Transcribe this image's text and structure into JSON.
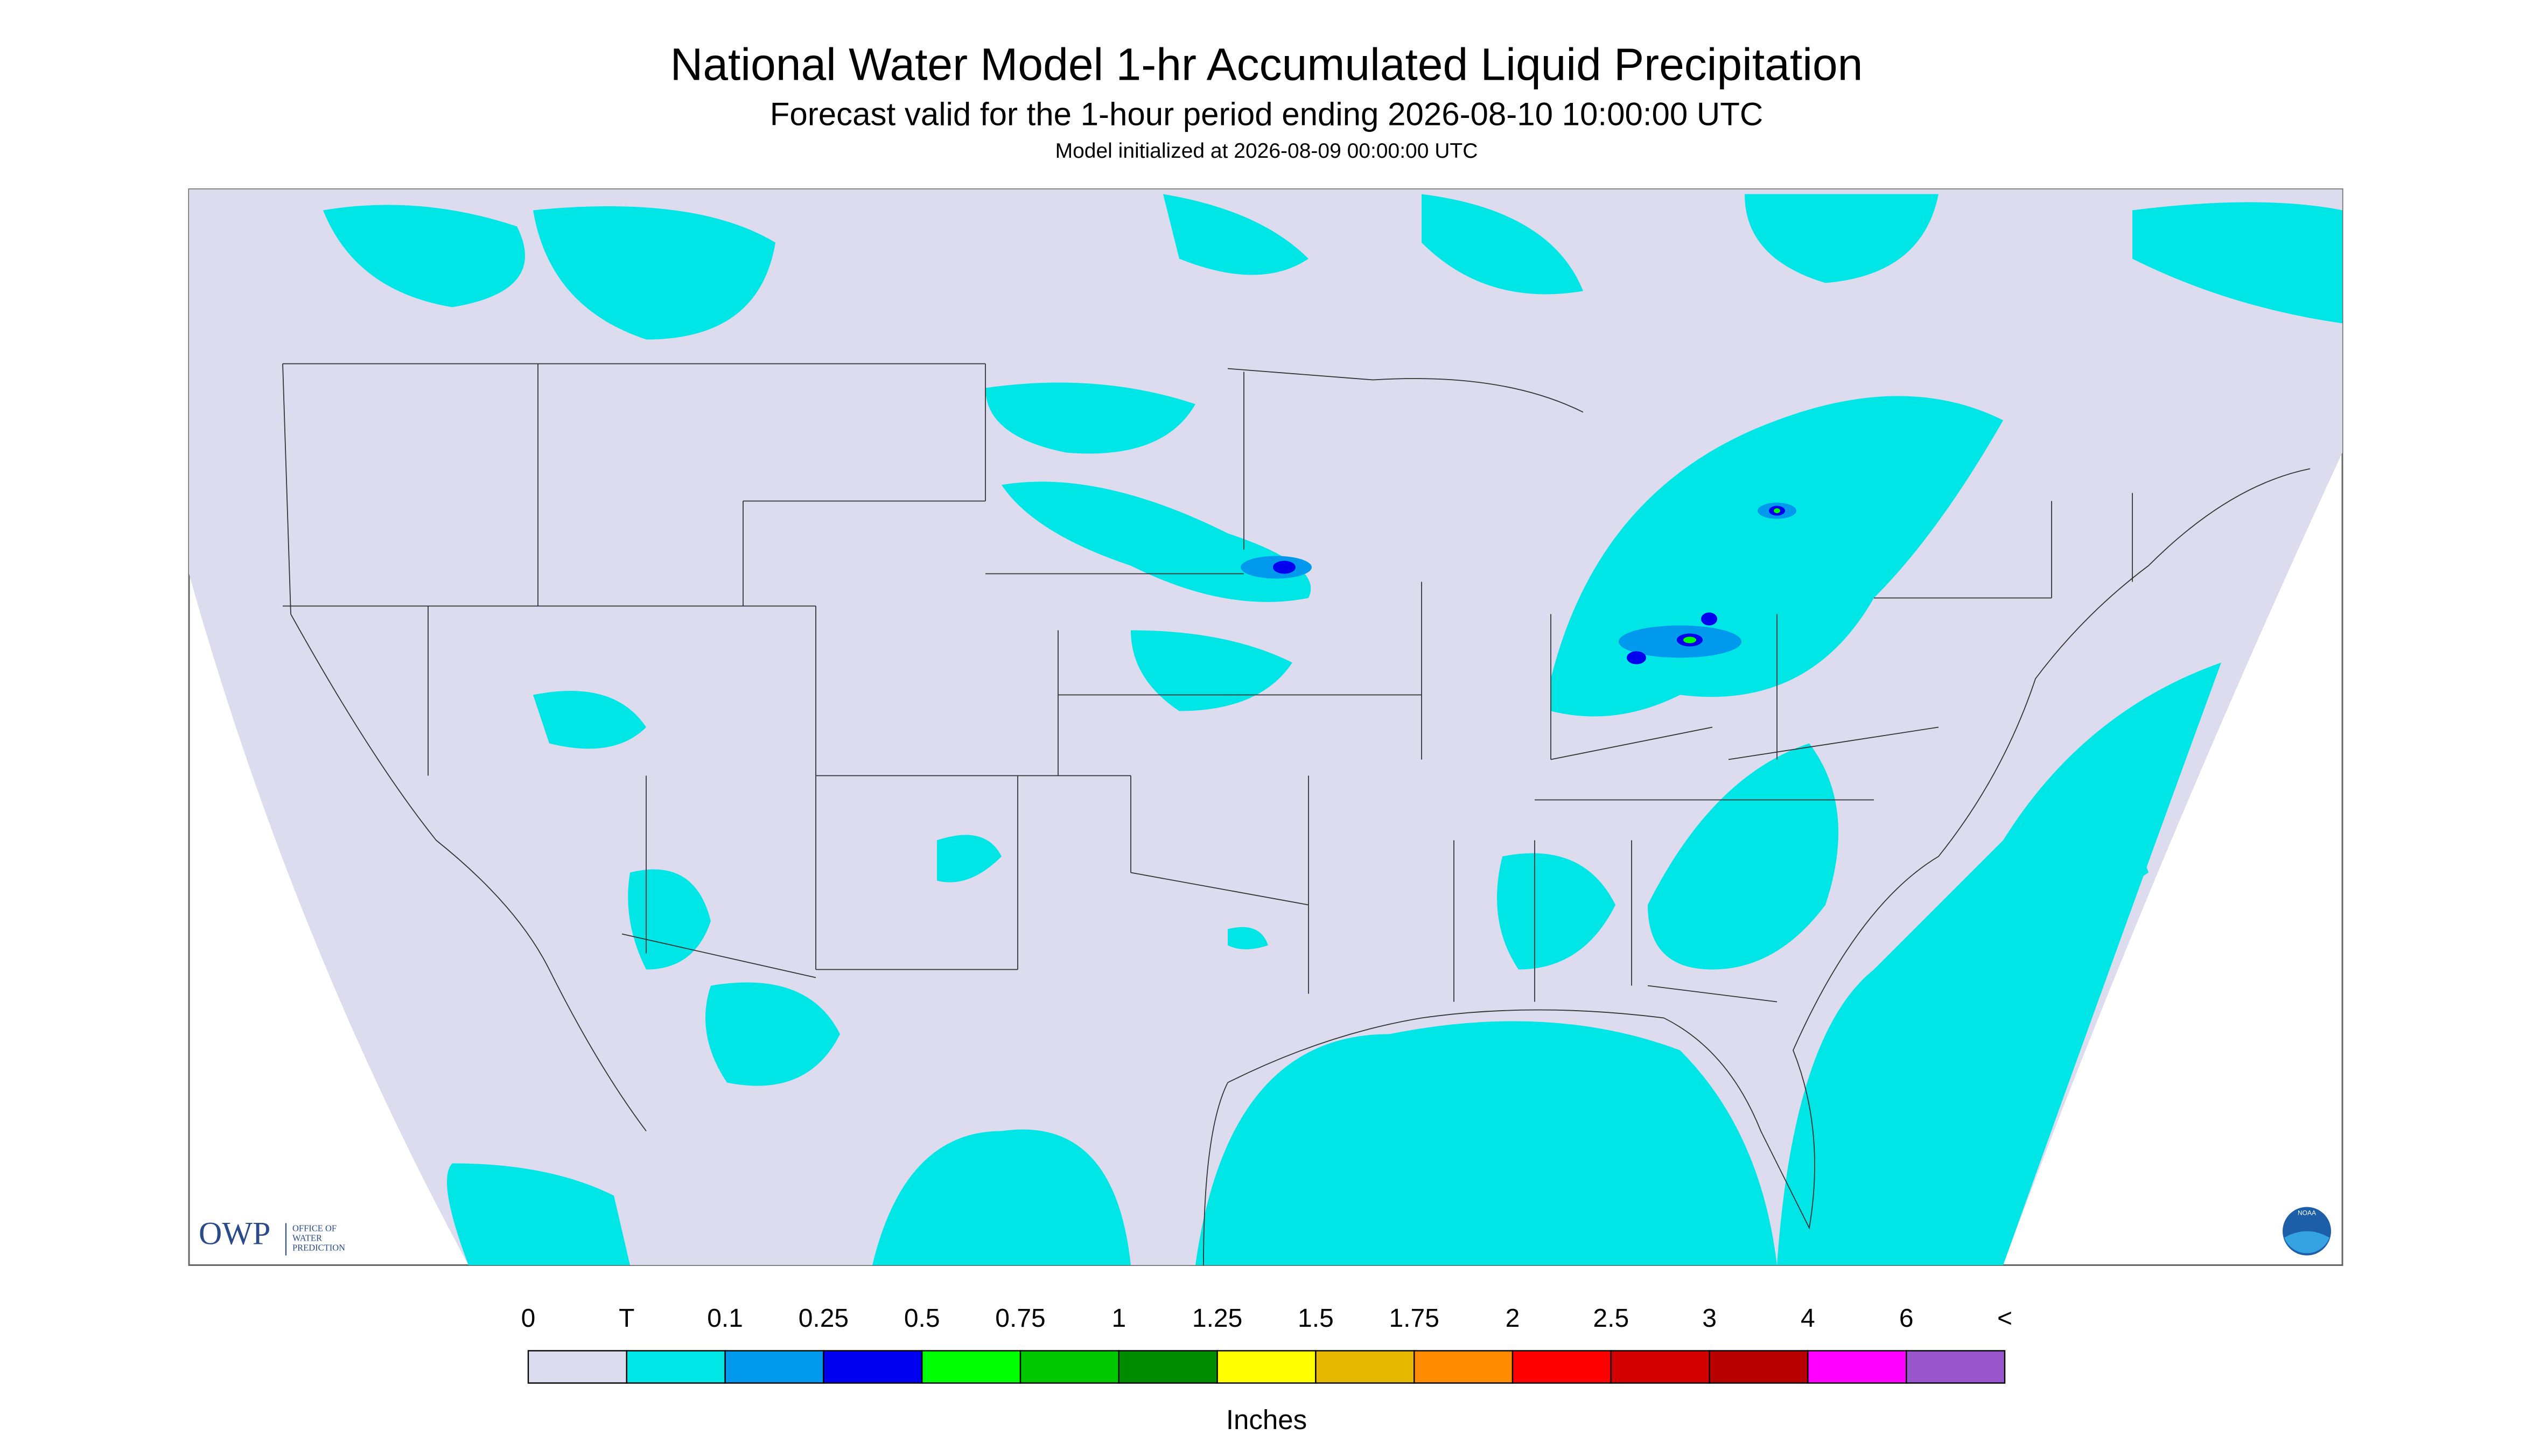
{
  "header": {
    "title": "National Water Model 1-hr Accumulated Liquid Precipitation",
    "subtitle": "Forecast valid for the 1-hour period ending 2026-08-10 10:00:00 UTC",
    "note": "Model initialized at 2026-08-09 00:00:00 UTC"
  },
  "logos": {
    "owp": "OWP",
    "owp_lines": [
      "OFFICE OF",
      "WATER",
      "PREDICTION"
    ],
    "noaa": "NOAA"
  },
  "legend": {
    "labels": [
      "0",
      "T",
      "0.1",
      "0.25",
      "0.5",
      "0.75",
      "1",
      "1.25",
      "1.5",
      "1.75",
      "2",
      "2.5",
      "3",
      "4",
      "6",
      "<"
    ],
    "colors": [
      "#dcdcee",
      "#00e5e5",
      "#0099ee",
      "#0000ee",
      "#00ff00",
      "#00c800",
      "#008c00",
      "#ffff00",
      "#e6b800",
      "#ff8c00",
      "#ff0000",
      "#d40000",
      "#b80000",
      "#ff00ff",
      "#9955cc"
    ],
    "unit": "Inches"
  }
}
